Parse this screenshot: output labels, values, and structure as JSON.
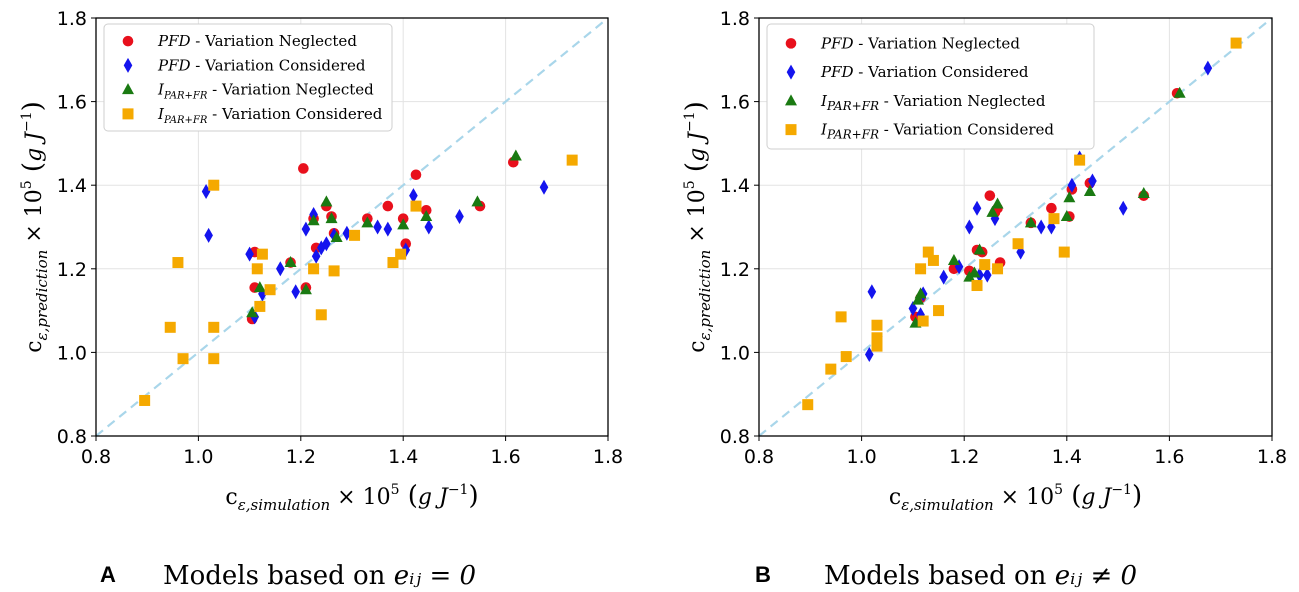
{
  "colors": {
    "pfd_neglected": "#e8101c",
    "pfd_considered": "#1414ee",
    "ipar_neglected": "#1a7a12",
    "ipar_considered": "#f5a900",
    "reference_line": "#a9d6ea"
  },
  "chart_data": [
    {
      "type": "scatter",
      "panel_letter": "A",
      "caption": "Models based on",
      "caption_math": "e_ij = 0",
      "caption_math_display": "eᵢⱼ = 0",
      "xlabel": "c_ε,simulation × 10^5 (g J^-1)",
      "ylabel": "c_ε,prediction × 10^5 (g J^-1)",
      "xlim": [
        0.8,
        1.8
      ],
      "ylim": [
        0.8,
        1.8
      ],
      "xticks": [
        "0.8",
        "1.0",
        "1.2",
        "1.4",
        "1.6",
        "1.8"
      ],
      "yticks": [
        "0.8",
        "1.0",
        "1.2",
        "1.4",
        "1.6",
        "1.8"
      ],
      "grid": true,
      "legend_position": "top-left",
      "reference_line": "y = x",
      "series": [
        {
          "name": "PFD - Variation Neglected",
          "italic": "PFD",
          "rest": " - Variation Neglected",
          "marker": "circle",
          "color_key": "pfd_neglected",
          "points": [
            [
              1.105,
              1.08
            ],
            [
              1.11,
              1.24
            ],
            [
              1.11,
              1.155
            ],
            [
              1.18,
              1.215
            ],
            [
              1.205,
              1.44
            ],
            [
              1.21,
              1.155
            ],
            [
              1.225,
              1.32
            ],
            [
              1.23,
              1.25
            ],
            [
              1.25,
              1.35
            ],
            [
              1.26,
              1.325
            ],
            [
              1.265,
              1.285
            ],
            [
              1.33,
              1.32
            ],
            [
              1.37,
              1.35
            ],
            [
              1.4,
              1.32
            ],
            [
              1.405,
              1.26
            ],
            [
              1.425,
              1.425
            ],
            [
              1.445,
              1.34
            ],
            [
              1.55,
              1.35
            ],
            [
              1.615,
              1.455
            ]
          ]
        },
        {
          "name": "PFD - Variation Considered",
          "italic": "PFD",
          "rest": " - Variation Considered",
          "marker": "diamond",
          "color_key": "pfd_considered",
          "points": [
            [
              1.015,
              1.385
            ],
            [
              1.02,
              1.28
            ],
            [
              1.1,
              1.235
            ],
            [
              1.11,
              1.085
            ],
            [
              1.125,
              1.14
            ],
            [
              1.16,
              1.2
            ],
            [
              1.19,
              1.145
            ],
            [
              1.21,
              1.295
            ],
            [
              1.225,
              1.33
            ],
            [
              1.23,
              1.23
            ],
            [
              1.24,
              1.25
            ],
            [
              1.25,
              1.26
            ],
            [
              1.265,
              1.28
            ],
            [
              1.29,
              1.285
            ],
            [
              1.35,
              1.3
            ],
            [
              1.37,
              1.295
            ],
            [
              1.405,
              1.245
            ],
            [
              1.42,
              1.375
            ],
            [
              1.45,
              1.3
            ],
            [
              1.51,
              1.325
            ],
            [
              1.675,
              1.395
            ]
          ]
        },
        {
          "name": "I_PAR+FR - Variation Neglected",
          "italic": "I",
          "sub": "PAR+FR",
          "rest": " - Variation Neglected",
          "marker": "triangle",
          "color_key": "ipar_neglected",
          "points": [
            [
              1.105,
              1.095
            ],
            [
              1.12,
              1.155
            ],
            [
              1.18,
              1.215
            ],
            [
              1.21,
              1.15
            ],
            [
              1.225,
              1.315
            ],
            [
              1.25,
              1.36
            ],
            [
              1.26,
              1.32
            ],
            [
              1.27,
              1.275
            ],
            [
              1.33,
              1.31
            ],
            [
              1.4,
              1.305
            ],
            [
              1.445,
              1.325
            ],
            [
              1.545,
              1.36
            ],
            [
              1.62,
              1.47
            ]
          ]
        },
        {
          "name": "I_PAR+FR - Variation Considered",
          "italic": "I",
          "sub": "PAR+FR",
          "rest": " - Variation Considered",
          "marker": "square",
          "color_key": "ipar_considered",
          "points": [
            [
              0.895,
              0.885
            ],
            [
              0.945,
              1.06
            ],
            [
              0.96,
              1.215
            ],
            [
              0.97,
              0.985
            ],
            [
              1.03,
              1.4
            ],
            [
              1.03,
              1.06
            ],
            [
              1.03,
              0.985
            ],
            [
              1.115,
              1.2
            ],
            [
              1.12,
              1.11
            ],
            [
              1.125,
              1.235
            ],
            [
              1.14,
              1.15
            ],
            [
              1.225,
              1.2
            ],
            [
              1.24,
              1.09
            ],
            [
              1.265,
              1.195
            ],
            [
              1.305,
              1.28
            ],
            [
              1.38,
              1.215
            ],
            [
              1.395,
              1.235
            ],
            [
              1.425,
              1.35
            ],
            [
              1.73,
              1.46
            ]
          ]
        }
      ]
    },
    {
      "type": "scatter",
      "panel_letter": "B",
      "caption": "Models based on",
      "caption_math": "e_ij ≠ 0",
      "caption_math_display": "eᵢⱼ ≠ 0",
      "xlabel": "c_ε,simulation × 10^5 (g J^-1)",
      "ylabel": "c_ε,prediction × 10^5 (g J^-1)",
      "xlim": [
        0.8,
        1.8
      ],
      "ylim": [
        0.8,
        1.8
      ],
      "xticks": [
        "0.8",
        "1.0",
        "1.2",
        "1.4",
        "1.6",
        "1.8"
      ],
      "yticks": [
        "0.8",
        "1.0",
        "1.2",
        "1.4",
        "1.6",
        "1.8"
      ],
      "grid": true,
      "legend_position": "top-left",
      "reference_line": "y = x",
      "series": [
        {
          "name": "PFD - Variation Neglected",
          "italic": "PFD",
          "rest": " - Variation Neglected",
          "marker": "circle",
          "color_key": "pfd_neglected",
          "points": [
            [
              1.105,
              1.085
            ],
            [
              1.115,
              1.13
            ],
            [
              1.18,
              1.2
            ],
            [
              1.21,
              1.195
            ],
            [
              1.225,
              1.245
            ],
            [
              1.235,
              1.24
            ],
            [
              1.25,
              1.375
            ],
            [
              1.26,
              1.335
            ],
            [
              1.265,
              1.345
            ],
            [
              1.27,
              1.215
            ],
            [
              1.33,
              1.31
            ],
            [
              1.37,
              1.345
            ],
            [
              1.405,
              1.325
            ],
            [
              1.41,
              1.39
            ],
            [
              1.425,
              1.46
            ],
            [
              1.445,
              1.405
            ],
            [
              1.55,
              1.375
            ],
            [
              1.615,
              1.62
            ]
          ]
        },
        {
          "name": "PFD - Variation Considered",
          "italic": "PFD",
          "rest": " - Variation Considered",
          "marker": "diamond",
          "color_key": "pfd_considered",
          "points": [
            [
              1.015,
              0.995
            ],
            [
              1.02,
              1.145
            ],
            [
              1.1,
              1.105
            ],
            [
              1.115,
              1.09
            ],
            [
              1.12,
              1.14
            ],
            [
              1.16,
              1.18
            ],
            [
              1.19,
              1.205
            ],
            [
              1.21,
              1.3
            ],
            [
              1.225,
              1.345
            ],
            [
              1.23,
              1.185
            ],
            [
              1.245,
              1.185
            ],
            [
              1.26,
              1.32
            ],
            [
              1.31,
              1.24
            ],
            [
              1.35,
              1.3
            ],
            [
              1.37,
              1.3
            ],
            [
              1.41,
              1.4
            ],
            [
              1.425,
              1.465
            ],
            [
              1.45,
              1.41
            ],
            [
              1.51,
              1.345
            ],
            [
              1.675,
              1.68
            ]
          ]
        },
        {
          "name": "I_PAR+FR - Variation Neglected",
          "italic": "I",
          "sub": "PAR+FR",
          "rest": " - Variation Neglected",
          "marker": "triangle",
          "color_key": "ipar_neglected",
          "points": [
            [
              1.105,
              1.07
            ],
            [
              1.11,
              1.125
            ],
            [
              1.115,
              1.14
            ],
            [
              1.18,
              1.22
            ],
            [
              1.21,
              1.18
            ],
            [
              1.22,
              1.19
            ],
            [
              1.23,
              1.245
            ],
            [
              1.255,
              1.335
            ],
            [
              1.265,
              1.355
            ],
            [
              1.33,
              1.31
            ],
            [
              1.4,
              1.325
            ],
            [
              1.405,
              1.37
            ],
            [
              1.445,
              1.385
            ],
            [
              1.55,
              1.38
            ],
            [
              1.62,
              1.62
            ]
          ]
        },
        {
          "name": "I_PAR+FR - Variation Considered",
          "italic": "I",
          "sub": "PAR+FR",
          "rest": " - Variation Considered",
          "marker": "square",
          "color_key": "ipar_considered",
          "points": [
            [
              0.895,
              0.875
            ],
            [
              0.94,
              0.96
            ],
            [
              0.96,
              1.085
            ],
            [
              0.97,
              0.99
            ],
            [
              1.03,
              1.065
            ],
            [
              1.03,
              1.035
            ],
            [
              1.03,
              1.015
            ],
            [
              1.115,
              1.2
            ],
            [
              1.12,
              1.075
            ],
            [
              1.13,
              1.24
            ],
            [
              1.14,
              1.22
            ],
            [
              1.15,
              1.1
            ],
            [
              1.225,
              1.16
            ],
            [
              1.24,
              1.21
            ],
            [
              1.265,
              1.2
            ],
            [
              1.305,
              1.26
            ],
            [
              1.375,
              1.32
            ],
            [
              1.395,
              1.24
            ],
            [
              1.425,
              1.46
            ],
            [
              1.73,
              1.74
            ]
          ]
        }
      ]
    }
  ]
}
